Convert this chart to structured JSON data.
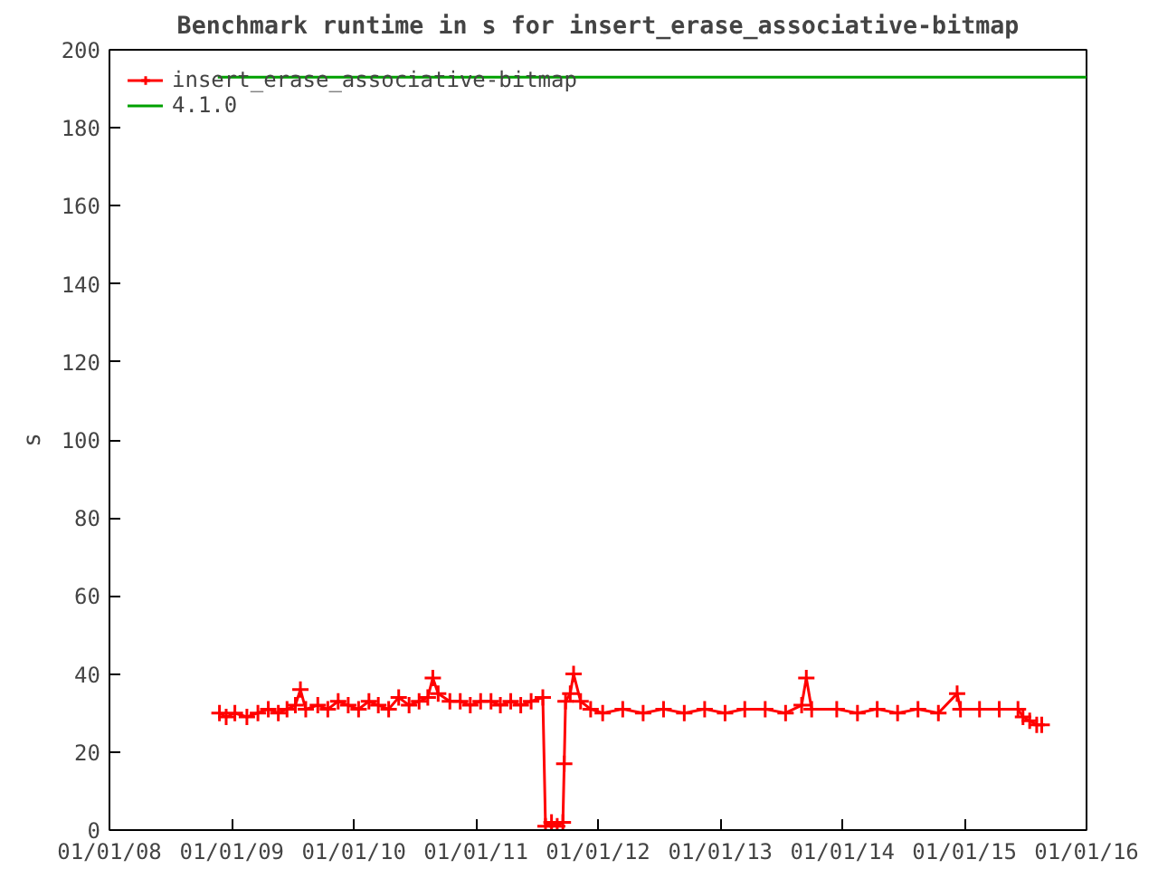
{
  "chart_data": {
    "type": "line",
    "title": "Benchmark runtime in s for insert_erase_associative-bitmap",
    "ylabel": "s",
    "xlim": [
      "2008-01-01",
      "2016-01-01"
    ],
    "ylim": [
      0,
      200
    ],
    "xticks": [
      {
        "value": "2008-01-01",
        "label": "01/01/08"
      },
      {
        "value": "2009-01-01",
        "label": "01/01/09"
      },
      {
        "value": "2010-01-01",
        "label": "01/01/10"
      },
      {
        "value": "2011-01-01",
        "label": "01/01/11"
      },
      {
        "value": "2012-01-01",
        "label": "01/01/12"
      },
      {
        "value": "2013-01-01",
        "label": "01/01/13"
      },
      {
        "value": "2014-01-01",
        "label": "01/01/14"
      },
      {
        "value": "2015-01-01",
        "label": "01/01/15"
      },
      {
        "value": "2016-01-01",
        "label": "01/01/16"
      }
    ],
    "yticks": [
      0,
      20,
      40,
      60,
      80,
      100,
      120,
      140,
      160,
      180,
      200
    ],
    "grid": false,
    "legend": "top left",
    "series": [
      {
        "name": "insert_erase_associative-bitmap",
        "color": "#ff0000",
        "marker": "cross",
        "line_style": "solid",
        "x": [
          "2008-11-25",
          "2008-12-15",
          "2009-01-10",
          "2009-02-15",
          "2009-03-20",
          "2009-04-20",
          "2009-05-20",
          "2009-06-15",
          "2009-07-10",
          "2009-07-25",
          "2009-08-10",
          "2009-09-15",
          "2009-10-15",
          "2009-11-15",
          "2009-12-15",
          "2010-01-15",
          "2010-02-15",
          "2010-03-15",
          "2010-04-15",
          "2010-05-15",
          "2010-06-15",
          "2010-07-15",
          "2010-08-10",
          "2010-08-25",
          "2010-09-10",
          "2010-10-15",
          "2010-11-15",
          "2010-12-15",
          "2011-01-15",
          "2011-02-15",
          "2011-03-15",
          "2011-04-15",
          "2011-05-15",
          "2011-06-15",
          "2011-07-20",
          "2011-07-28",
          "2011-08-15",
          "2011-09-01",
          "2011-09-18",
          "2011-09-22",
          "2011-09-26",
          "2011-10-10",
          "2011-10-20",
          "2011-11-10",
          "2011-12-10",
          "2012-01-15",
          "2012-03-15",
          "2012-05-15",
          "2012-07-15",
          "2012-09-15",
          "2012-11-15",
          "2013-01-15",
          "2013-03-15",
          "2013-05-15",
          "2013-07-15",
          "2013-09-01",
          "2013-09-15",
          "2013-10-01",
          "2013-12-15",
          "2014-02-15",
          "2014-04-15",
          "2014-06-15",
          "2014-08-15",
          "2014-10-15",
          "2014-12-10",
          "2014-12-20",
          "2015-02-15",
          "2015-04-15",
          "2015-06-10",
          "2015-06-25",
          "2015-07-15",
          "2015-08-05",
          "2015-08-20"
        ],
        "values": [
          30,
          29,
          30,
          29,
          30,
          31,
          30,
          31,
          32,
          36,
          31,
          32,
          31,
          33,
          32,
          31,
          33,
          32,
          31,
          34,
          32,
          33,
          34,
          39,
          35,
          33,
          33,
          32,
          33,
          33,
          32,
          33,
          32,
          33,
          34,
          1,
          2,
          1,
          2,
          17,
          33,
          35,
          40,
          33,
          31,
          30,
          31,
          30,
          31,
          30,
          31,
          30,
          31,
          31,
          30,
          32,
          39,
          31,
          31,
          30,
          31,
          30,
          31,
          30,
          35,
          31,
          31,
          31,
          31,
          29,
          28,
          27,
          27
        ]
      },
      {
        "name": "4.1.0",
        "color": "#00a000",
        "marker": "none",
        "line_style": "solid",
        "x": [
          "2008-11-20",
          "2016-01-01"
        ],
        "values": [
          193,
          193
        ]
      }
    ]
  }
}
